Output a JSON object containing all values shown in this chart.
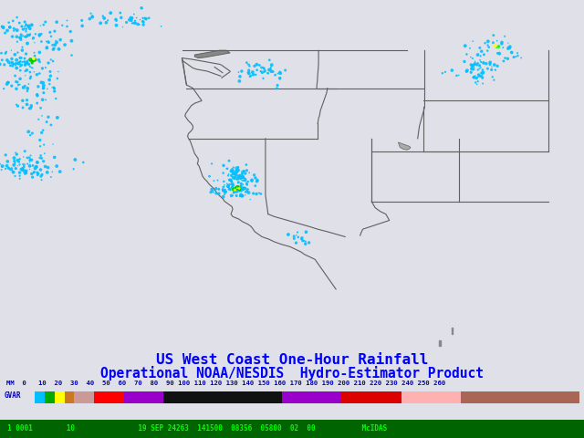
{
  "title_line1": "US West Coast One-Hour Rainfall",
  "title_line2": "Operational NOAA/NESDIS  Hydro-Estimator Product",
  "title_color": "#0000FF",
  "bg_color": "#E0E0E8",
  "map_bg_color": "#E8E8EE",
  "bottom_bar_color": "#006400",
  "bottom_text": "1 0001        10               19 SEP 24263  141500  08356  05800  02  00           McIDAS",
  "bottom_text_color": "#00FF00",
  "fig_width": 6.4,
  "fig_height": 4.8,
  "dpi": 100,
  "colorbar_colors": [
    "#00BFFF",
    "#00AA00",
    "#FFFF00",
    "#CC7722",
    "#CC9999",
    "#FF0000",
    "#9900CC",
    "#111111",
    "#111111",
    "#9900CC",
    "#DD0000",
    "#FFB0B0",
    "#AA6655"
  ],
  "colorbar_weights": [
    1,
    1,
    1,
    1,
    2,
    3,
    4,
    6,
    6,
    6,
    6,
    6,
    12
  ]
}
